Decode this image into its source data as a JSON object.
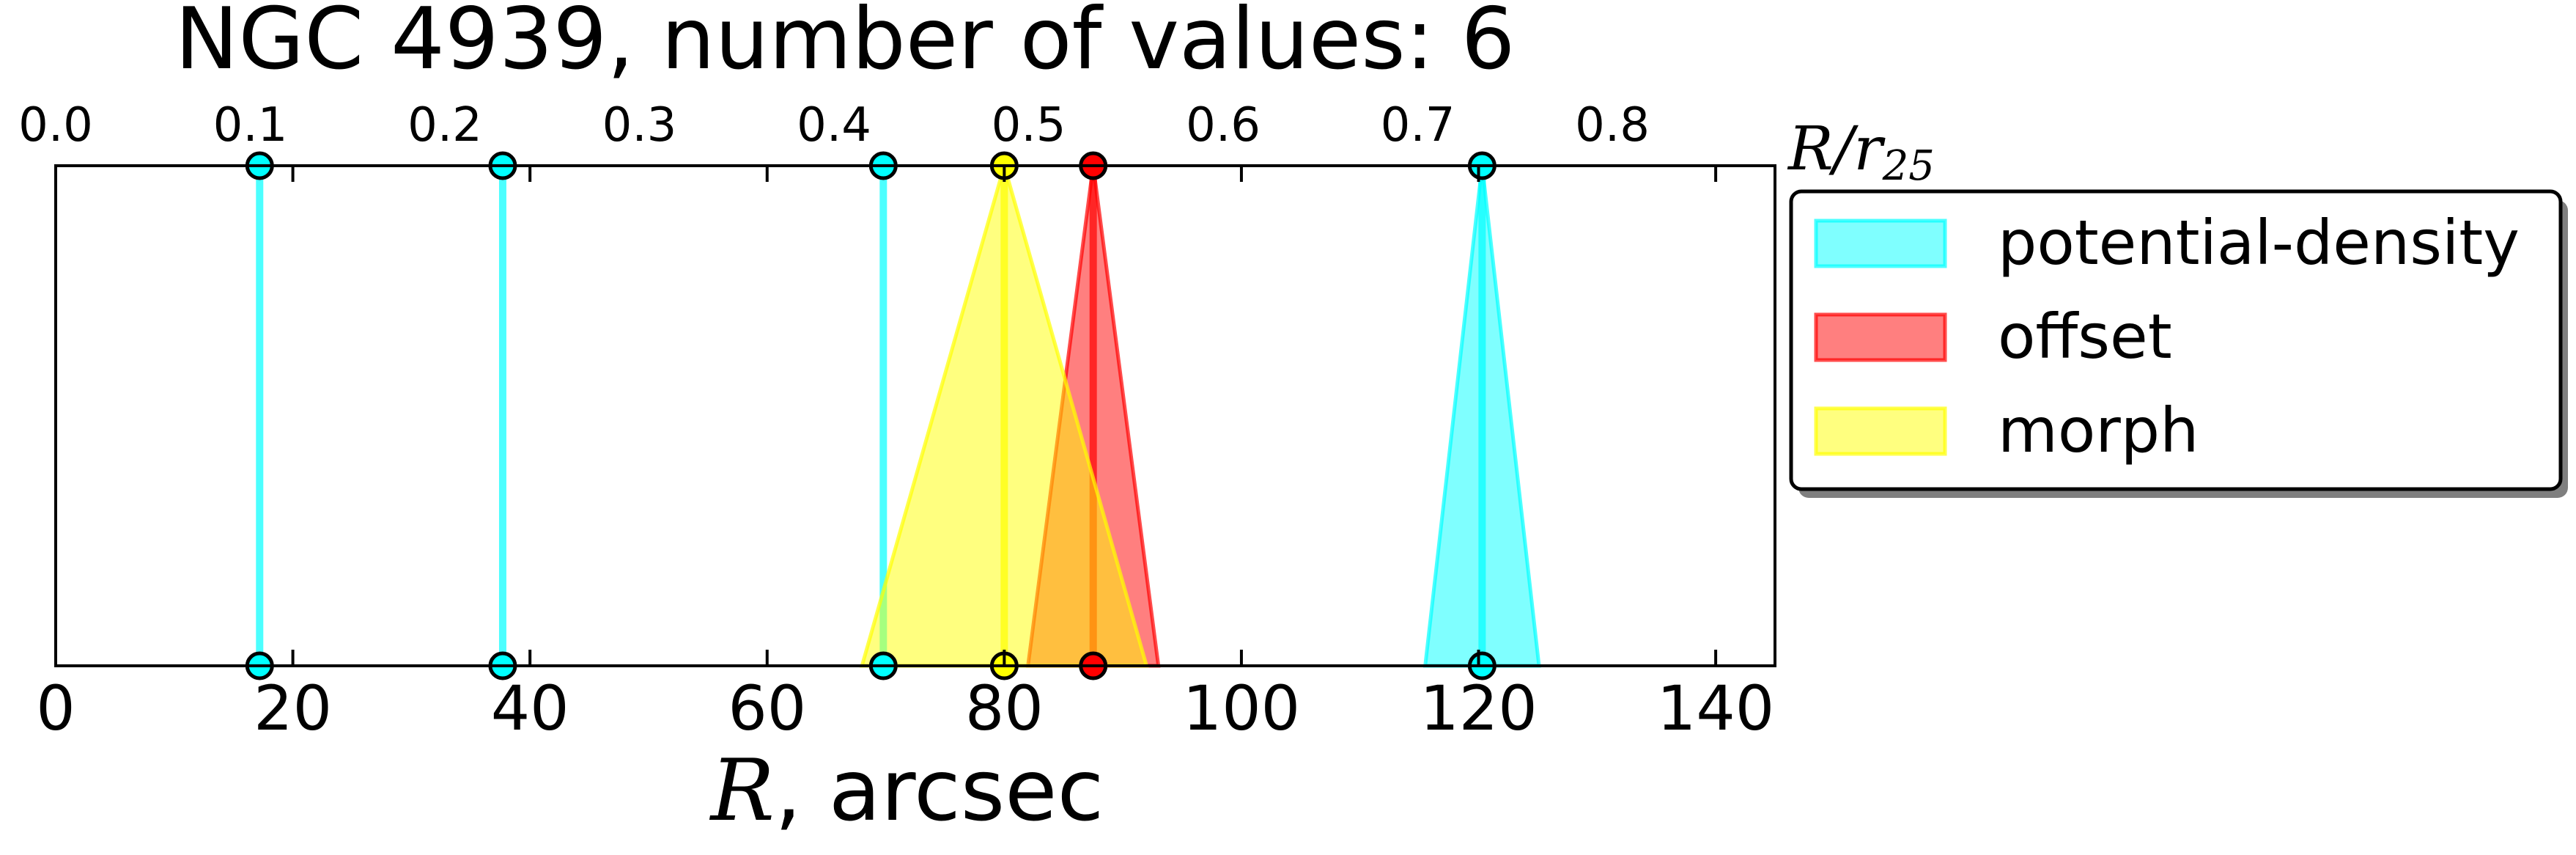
{
  "chart_data": {
    "type": "scatter",
    "title": "NGC 4939, number of values: 6",
    "xlabel": {
      "symbol": "R",
      "rest": ", arcsec"
    },
    "top_axis_label": {
      "base": "R/r",
      "sub": "25"
    },
    "xlim": [
      0,
      145
    ],
    "top_xlim": [
      0,
      0.8836
    ],
    "xticks": [
      0,
      20,
      40,
      60,
      80,
      100,
      120,
      140
    ],
    "xtick_labels": [
      "0",
      "20",
      "40",
      "60",
      "80",
      "100",
      "120",
      "140"
    ],
    "top_xticks": [
      0.0,
      0.1,
      0.2,
      0.3,
      0.4,
      0.5,
      0.6,
      0.7,
      0.8
    ],
    "top_xtick_labels": [
      "0.0",
      "0.1",
      "0.2",
      "0.3",
      "0.4",
      "0.5",
      "0.6",
      "0.7",
      "0.8"
    ],
    "grid": false,
    "legend_position": "right",
    "series": [
      {
        "name": "potential-density",
        "color": "#00ffff",
        "points": [
          {
            "r": 17.2,
            "err": 0
          },
          {
            "r": 37.7,
            "err": 0
          },
          {
            "r": 69.8,
            "err": 0
          },
          {
            "r": 120.3,
            "err": 4.8
          }
        ]
      },
      {
        "name": "offset",
        "color": "#ff0000",
        "points": [
          {
            "r": 87.5,
            "err": 5.5
          }
        ]
      },
      {
        "name": "morph",
        "color": "#ffff00",
        "points": [
          {
            "r": 80.0,
            "err": 12.0
          }
        ]
      }
    ]
  }
}
